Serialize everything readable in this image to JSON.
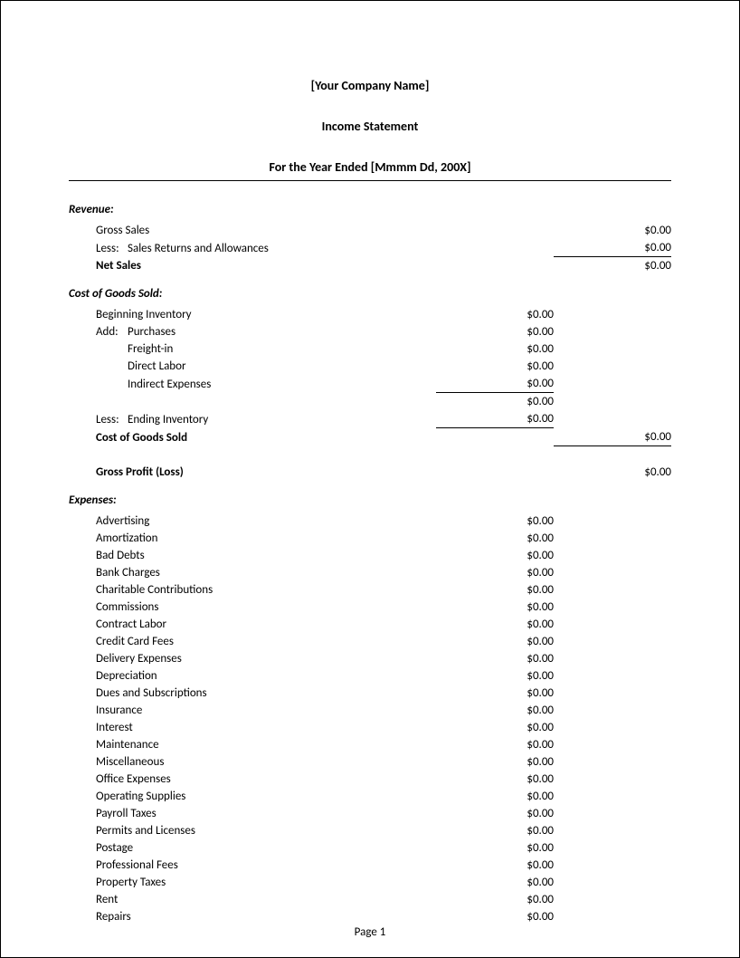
{
  "header": {
    "company_name": "[Your Company Name]",
    "doc_title": "Income Statement",
    "period": "For the Year Ended [Mmmm Dd, 200X]"
  },
  "revenue": {
    "title": "Revenue:",
    "gross_sales_label": "Gross Sales",
    "gross_sales_value": "$0.00",
    "less_prefix": "Less:",
    "sales_returns_label": "Sales Returns and Allowances",
    "sales_returns_value": "$0.00",
    "net_sales_label": "Net Sales",
    "net_sales_value": "$0.00"
  },
  "cogs": {
    "title": "Cost of Goods Sold:",
    "beginning_inv_label": "Beginning Inventory",
    "beginning_inv_value": "$0.00",
    "add_prefix": "Add:",
    "purchases_label": "Purchases",
    "purchases_value": "$0.00",
    "freight_label": "Freight-in",
    "freight_value": "$0.00",
    "direct_labor_label": "Direct Labor",
    "direct_labor_value": "$0.00",
    "indirect_exp_label": "Indirect Expenses",
    "indirect_exp_value": "$0.00",
    "subtotal_value": "$0.00",
    "less_prefix": "Less:",
    "ending_inv_label": "Ending Inventory",
    "ending_inv_value": "$0.00",
    "cogs_label": "Cost of Goods Sold",
    "cogs_value": "$0.00",
    "gross_profit_label": "Gross Profit (Loss)",
    "gross_profit_value": "$0.00"
  },
  "expenses": {
    "title": "Expenses:",
    "items": [
      {
        "label": "Advertising",
        "value": "$0.00"
      },
      {
        "label": "Amortization",
        "value": "$0.00"
      },
      {
        "label": "Bad Debts",
        "value": "$0.00"
      },
      {
        "label": "Bank Charges",
        "value": "$0.00"
      },
      {
        "label": "Charitable Contributions",
        "value": "$0.00"
      },
      {
        "label": "Commissions",
        "value": "$0.00"
      },
      {
        "label": "Contract Labor",
        "value": "$0.00"
      },
      {
        "label": "Credit Card Fees",
        "value": "$0.00"
      },
      {
        "label": "Delivery Expenses",
        "value": "$0.00"
      },
      {
        "label": "Depreciation",
        "value": "$0.00"
      },
      {
        "label": "Dues and Subscriptions",
        "value": "$0.00"
      },
      {
        "label": "Insurance",
        "value": "$0.00"
      },
      {
        "label": "Interest",
        "value": "$0.00"
      },
      {
        "label": "Maintenance",
        "value": "$0.00"
      },
      {
        "label": "Miscellaneous",
        "value": "$0.00"
      },
      {
        "label": "Office Expenses",
        "value": "$0.00"
      },
      {
        "label": "Operating Supplies",
        "value": "$0.00"
      },
      {
        "label": "Payroll Taxes",
        "value": "$0.00"
      },
      {
        "label": "Permits and Licenses",
        "value": "$0.00"
      },
      {
        "label": "Postage",
        "value": "$0.00"
      },
      {
        "label": "Professional Fees",
        "value": "$0.00"
      },
      {
        "label": "Property Taxes",
        "value": "$0.00"
      },
      {
        "label": "Rent",
        "value": "$0.00"
      },
      {
        "label": "Repairs",
        "value": "$0.00"
      }
    ]
  },
  "footer": {
    "page_label": "Page 1"
  }
}
